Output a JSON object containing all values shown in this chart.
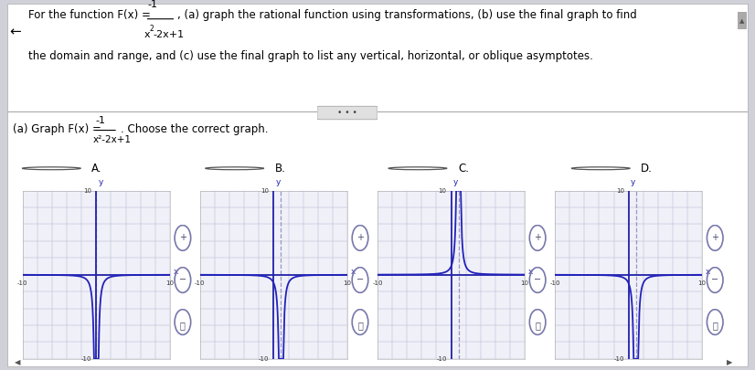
{
  "bg_color": "#d0d0d8",
  "panel_color": "#ffffff",
  "graph_bg": "#f0f0f8",
  "grid_color": "#b0b0cc",
  "axis_color": "#2222aa",
  "curve_color": "#2222bb",
  "asymptote_color": "#8888bb",
  "text_color": "#000000",
  "graphs": [
    {
      "hshift": 0,
      "flip": -1
    },
    {
      "hshift": 1,
      "flip": -1
    },
    {
      "hshift": 1,
      "flip": 1
    },
    {
      "hshift": 1,
      "flip": -1
    }
  ],
  "choice_labels": [
    "A.",
    "B.",
    "C.",
    "D."
  ]
}
